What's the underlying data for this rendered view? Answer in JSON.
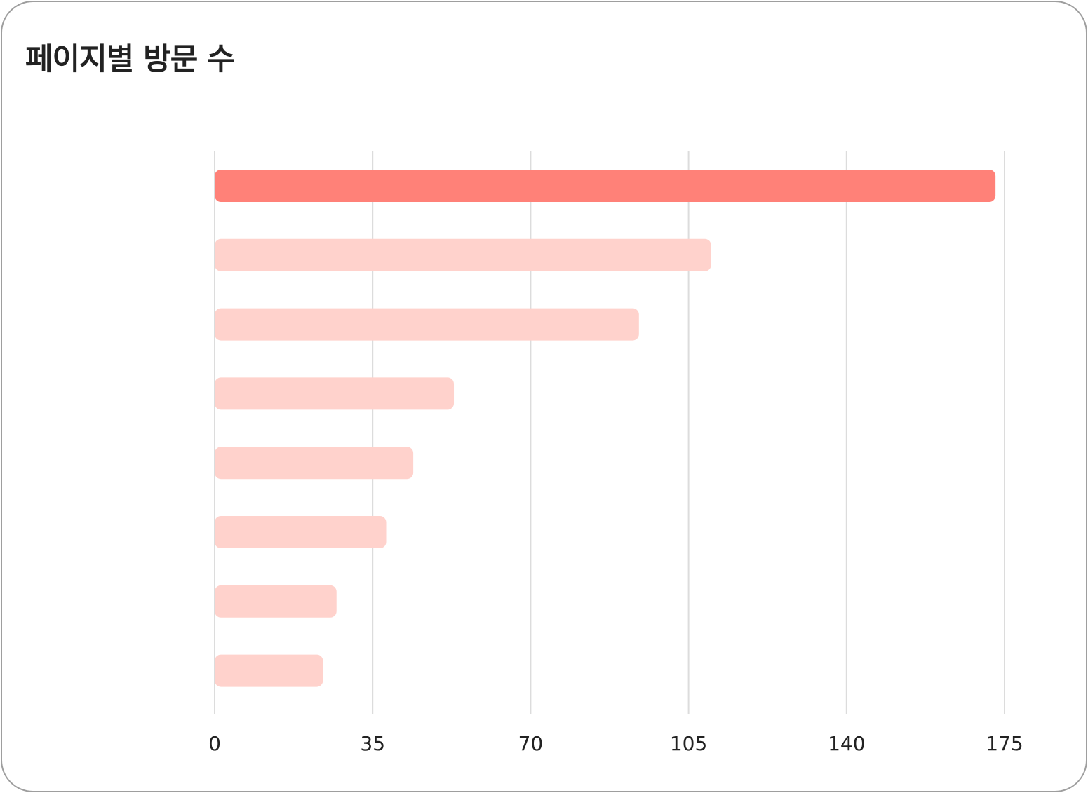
{
  "card": {
    "title": "페이지별 방문 수"
  },
  "colors": {
    "highlight_bar": "#ff8178",
    "normal_bar": "#ffd2cc",
    "grid": "#dcdcdc",
    "border": "#9e9e9e",
    "title_text": "#222222"
  },
  "chart_data": {
    "type": "bar",
    "orientation": "horizontal",
    "title": "페이지별 방문 수",
    "categories": [
      "",
      "",
      "",
      "",
      "",
      "",
      "",
      ""
    ],
    "values": [
      173,
      110,
      94,
      53,
      44,
      38,
      27,
      24
    ],
    "highlight_index": 0,
    "xlim": [
      0,
      175
    ],
    "xticks": [
      "0",
      "35",
      "70",
      "105",
      "140",
      "175"
    ],
    "grid": "vertical",
    "legend": "none"
  }
}
